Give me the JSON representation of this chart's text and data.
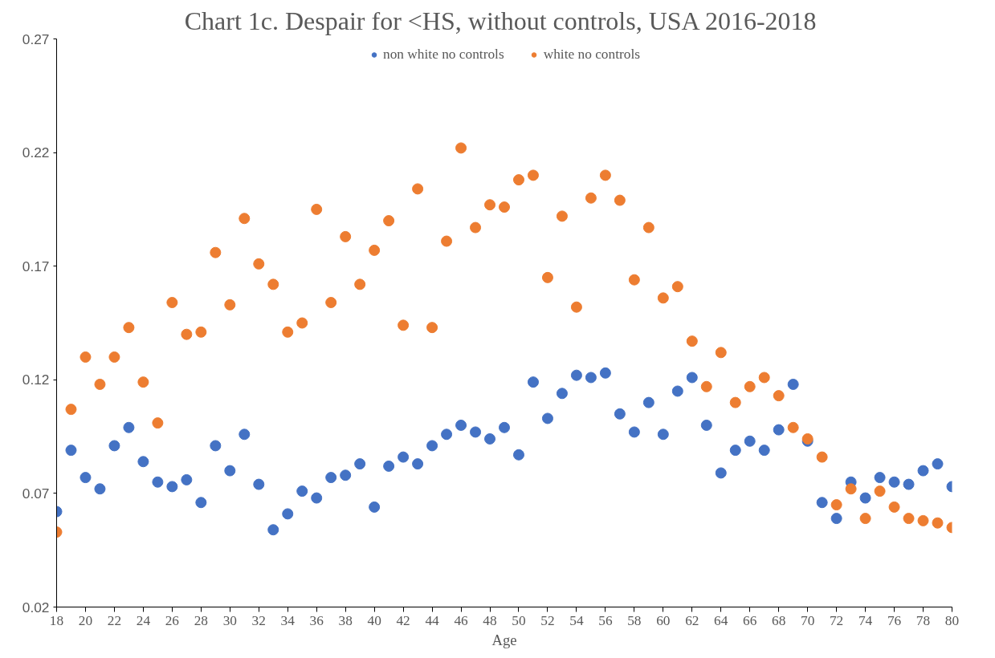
{
  "chart_data": {
    "type": "scatter",
    "title": "Chart 1c.  Despair for <HS, without controls, USA 2016-2018",
    "xlabel": "Age",
    "x": [
      18,
      19,
      20,
      21,
      22,
      23,
      24,
      25,
      26,
      27,
      28,
      29,
      30,
      31,
      32,
      33,
      34,
      35,
      36,
      37,
      38,
      39,
      40,
      41,
      42,
      43,
      44,
      45,
      46,
      47,
      48,
      49,
      50,
      51,
      52,
      53,
      54,
      55,
      56,
      57,
      58,
      59,
      60,
      61,
      62,
      63,
      64,
      65,
      66,
      67,
      68,
      69,
      70,
      71,
      72,
      73,
      74,
      75,
      76,
      77,
      78,
      79,
      80
    ],
    "series": [
      {
        "name": "non white no controls",
        "color": "#4472c4",
        "values": [
          0.062,
          0.089,
          0.077,
          0.072,
          0.091,
          0.099,
          0.084,
          0.075,
          0.073,
          0.076,
          0.066,
          0.091,
          0.08,
          0.096,
          0.074,
          0.054,
          0.061,
          0.071,
          0.068,
          0.077,
          0.078,
          0.083,
          0.064,
          0.082,
          0.086,
          0.083,
          0.091,
          0.096,
          0.1,
          0.097,
          0.094,
          0.099,
          0.087,
          0.119,
          0.103,
          0.114,
          0.122,
          0.121,
          0.123,
          0.105,
          0.097,
          0.11,
          0.096,
          0.115,
          0.121,
          0.1,
          0.079,
          0.089,
          0.093,
          0.089,
          0.098,
          0.118,
          0.093,
          0.066,
          0.059,
          0.075,
          0.068,
          0.077,
          0.075,
          0.074,
          0.08,
          0.083,
          0.073
        ]
      },
      {
        "name": "white no controls",
        "color": "#ed7d31",
        "values": [
          0.053,
          0.107,
          0.13,
          0.118,
          0.13,
          0.143,
          0.119,
          0.101,
          0.154,
          0.14,
          0.141,
          0.176,
          0.153,
          0.191,
          0.171,
          0.162,
          0.141,
          0.145,
          0.195,
          0.154,
          0.183,
          0.162,
          0.177,
          0.19,
          0.144,
          0.204,
          0.143,
          0.181,
          0.222,
          0.187,
          0.197,
          0.196,
          0.208,
          0.21,
          0.165,
          0.192,
          0.152,
          0.2,
          0.21,
          0.199,
          0.164,
          0.187,
          0.156,
          0.161,
          0.137,
          0.117,
          0.132,
          0.11,
          0.117,
          0.121,
          0.113,
          0.099,
          0.094,
          0.086,
          0.065,
          0.072,
          0.059,
          0.071,
          0.064,
          0.059,
          0.058,
          0.057,
          0.055
        ]
      }
    ],
    "xlim": [
      18,
      80
    ],
    "xticks": [
      18,
      20,
      22,
      24,
      26,
      28,
      30,
      32,
      34,
      36,
      38,
      40,
      42,
      44,
      46,
      48,
      50,
      52,
      54,
      56,
      58,
      60,
      62,
      64,
      66,
      68,
      70,
      72,
      74,
      76,
      78,
      80
    ],
    "ylim": [
      0.02,
      0.27
    ],
    "yticks": [
      0.02,
      0.07,
      0.12,
      0.17,
      0.22,
      0.27
    ],
    "grid": false,
    "legend": "top",
    "marker": "circle"
  }
}
